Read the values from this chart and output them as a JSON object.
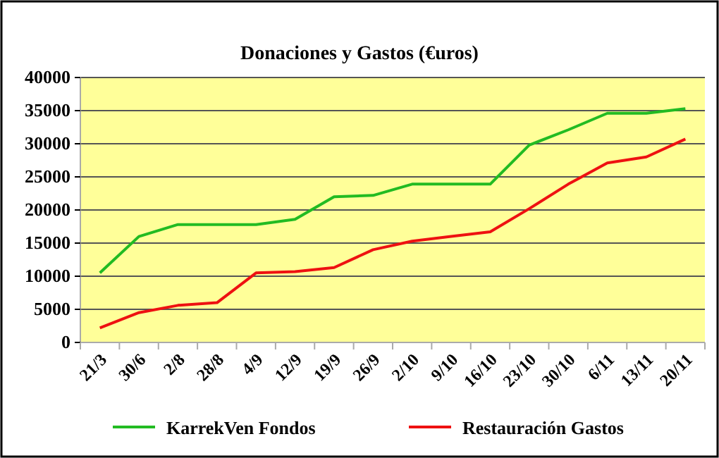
{
  "chart_data": {
    "type": "line",
    "title": "Donaciones y Gastos (€uros)",
    "categories": [
      "21/3",
      "30/6",
      "2/8",
      "28/8",
      "4/9",
      "12/9",
      "19/9",
      "26/9",
      "2/10",
      "9/10",
      "16/10",
      "23/10",
      "30/10",
      "6/11",
      "13/11",
      "20/11"
    ],
    "series": [
      {
        "name": "KarrekVen Fondos",
        "color": "#22bb22",
        "values": [
          10500,
          16000,
          17800,
          17800,
          17800,
          18600,
          22000,
          22200,
          23900,
          23900,
          23900,
          29800,
          32100,
          34600,
          34600,
          35300
        ]
      },
      {
        "name": "Restauración Gastos",
        "color": "#ee1111",
        "values": [
          2200,
          4500,
          5600,
          6000,
          10500,
          10700,
          11300,
          14000,
          15300,
          16000,
          16700,
          20200,
          23900,
          27100,
          28000,
          30700
        ]
      }
    ],
    "ylim": [
      0,
      40000
    ],
    "yticks": [
      0,
      5000,
      10000,
      15000,
      20000,
      25000,
      30000,
      35000,
      40000
    ],
    "grid": "y",
    "legend": "bottom",
    "marker": "none",
    "line_style": "solid"
  }
}
